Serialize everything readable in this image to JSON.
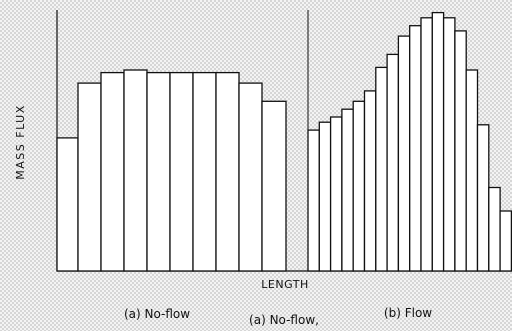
{
  "figure": {
    "ylabel": "MASS FLUX",
    "xlabel": "LENGTH",
    "caption_a": "(a) No-flow",
    "caption_a_overlap": "(a) No-flow,",
    "caption_b": "(b) Flow"
  },
  "chart_data": [
    {
      "type": "bar",
      "panel": "(a) No-flow",
      "values": [
        51,
        72,
        76,
        77,
        76,
        76,
        76,
        76,
        72,
        65
      ],
      "ylim": [
        0,
        100
      ],
      "grid": false
    },
    {
      "type": "bar",
      "panel": "(b) Flow",
      "values": [
        54,
        57,
        59,
        62,
        65,
        69,
        78,
        83,
        90,
        94,
        97,
        99,
        97,
        92,
        77,
        56,
        32,
        23
      ],
      "ylim": [
        0,
        100
      ],
      "grid": false
    }
  ]
}
